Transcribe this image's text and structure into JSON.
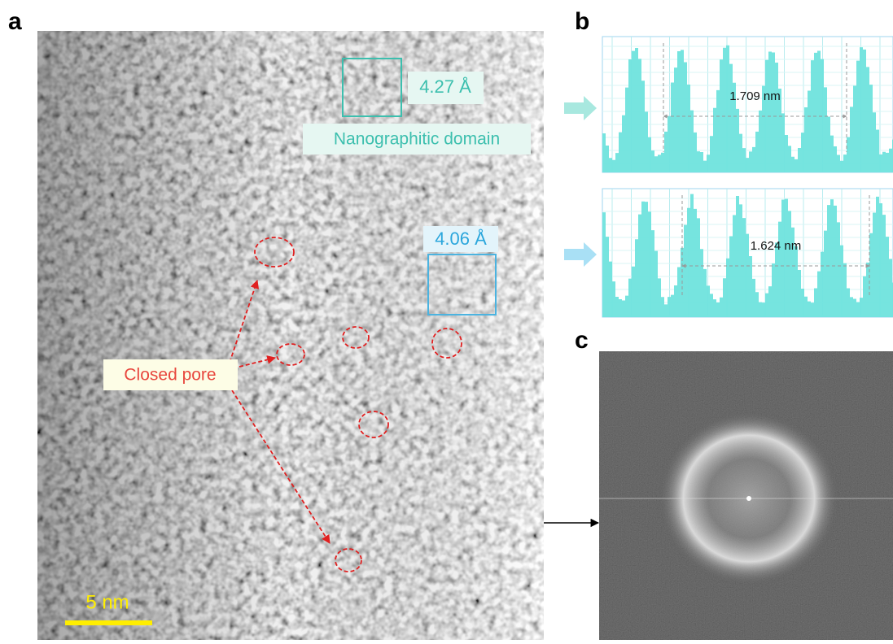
{
  "panel_labels": [
    "a",
    "b",
    "c"
  ],
  "panel_a": {
    "lattice_1": "4.27 Å",
    "domain_label": "Nanographitic domain",
    "lattice_2": "4.06 Å",
    "pore_label": "Closed pore",
    "scale_bar": "5 nm"
  },
  "panel_b": {
    "spacings": [
      "1.709 nm",
      "1.624 nm"
    ]
  }
}
